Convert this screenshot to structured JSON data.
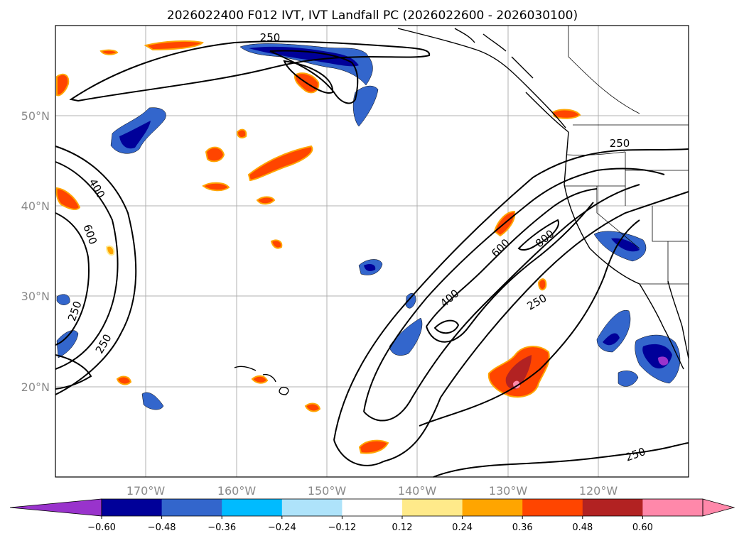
{
  "title": "2026022400 F012 IVT, IVT Landfall PC (2026022600 - 2026030100)",
  "map": {
    "lat_labels": [
      "50°N",
      "40°N",
      "30°N",
      "20°N"
    ],
    "lon_labels": [
      "170°W",
      "160°W",
      "150°W",
      "140°W",
      "130°W",
      "120°W"
    ],
    "contour_labels": [
      "250",
      "250",
      "400",
      "600",
      "250",
      "250",
      "400",
      "600",
      "800",
      "250",
      "250"
    ]
  },
  "colorbar": {
    "ticks": [
      "−0.60",
      "−0.48",
      "−0.36",
      "−0.24",
      "−0.12",
      "0.12",
      "0.24",
      "0.36",
      "0.48",
      "0.60"
    ],
    "colors": [
      "#9933cc",
      "#000099",
      "#3366cc",
      "#00bbff",
      "#aee3fa",
      "#ffffff",
      "#ffea8a",
      "#ffa500",
      "#ff4500",
      "#b22222",
      "#ff88aa",
      "#ff88aa"
    ],
    "ends": {
      "low": "#9933cc",
      "high": "#ff88aa"
    }
  },
  "colors": {
    "contour": "#000000",
    "grid": "#b0b0b0",
    "label": "#8a8a8a"
  }
}
